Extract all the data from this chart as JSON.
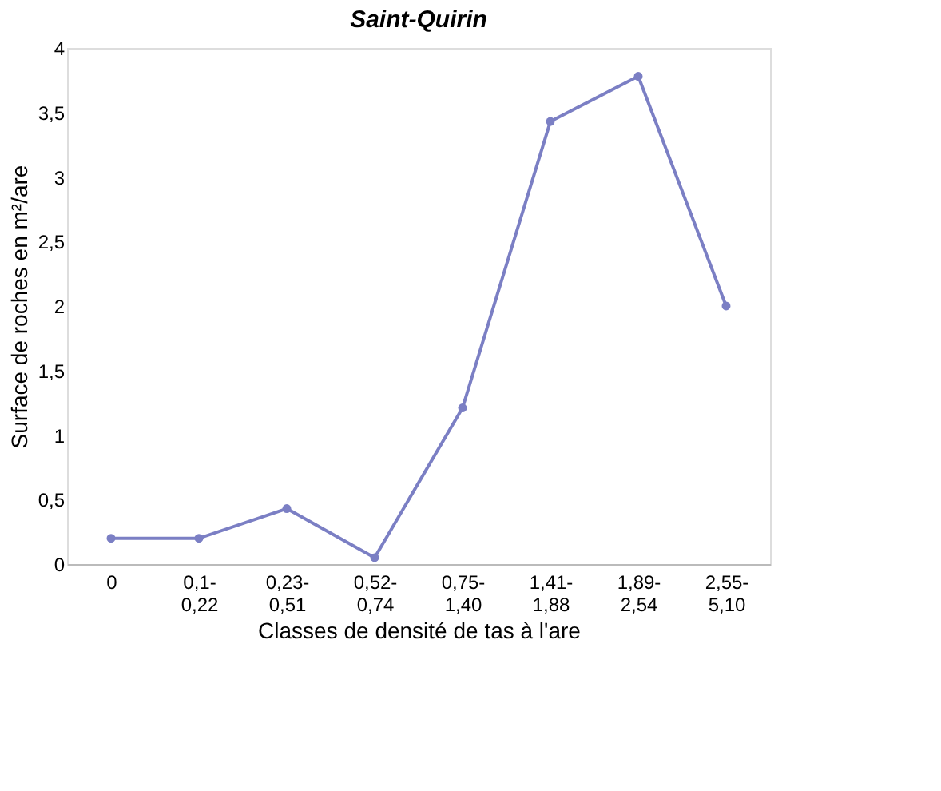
{
  "chart_data": {
    "type": "line",
    "title": "Saint-Quirin",
    "xlabel": "Classes de densité de tas à l'are",
    "ylabel": "Surface de roches en m²/are",
    "categories": [
      "0",
      "0,1-0,22",
      "0,23-0,51",
      "0,52-0,74",
      "0,75-1,40",
      "1,41-1,88",
      "1,89-2,54",
      "2,55-5,10"
    ],
    "series": [
      {
        "color": "#7b7fc4",
        "values": [
          0.2,
          0.2,
          0.43,
          0.05,
          1.21,
          3.43,
          3.78,
          2.0
        ]
      }
    ],
    "ylim": [
      0,
      4
    ],
    "yticks": [
      0,
      {
        "value": 0.5,
        "label": "0,5"
      },
      1,
      {
        "value": 1.5,
        "label": "1,5"
      },
      2,
      {
        "value": 2.5,
        "label": "2,5"
      },
      3,
      {
        "value": 3.5,
        "label": "3,5"
      },
      4
    ],
    "grid": false,
    "marker": "circle",
    "line_style": "solid"
  }
}
